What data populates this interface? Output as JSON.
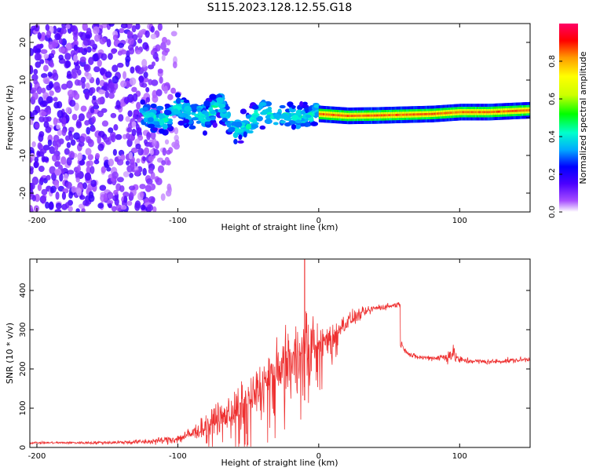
{
  "figure_title": "S115.2023.128.12.55.G18",
  "chart_data": [
    {
      "type": "heatmap",
      "title": "",
      "xlabel": "Height of straight line (km)",
      "ylabel": "Frequency (Hz)",
      "xlim": [
        -205,
        150
      ],
      "ylim": [
        -25,
        25
      ],
      "xticks": [
        -200,
        -100,
        0,
        100
      ],
      "yticks": [
        -20,
        -10,
        0,
        10,
        20
      ],
      "grid": false,
      "description_of_values": "normalized spectral amplitude vs height and frequency",
      "features": [
        {
          "name": "scattered noise",
          "x_range": [
            -205,
            -110
          ],
          "freq_range": [
            -25,
            25
          ],
          "typical_amplitude": 0.1
        },
        {
          "name": "wandering signal",
          "x_range": [
            -125,
            0
          ],
          "center_freq_points": [
            [
              -125,
              1
            ],
            [
              -110,
              -1
            ],
            [
              -100,
              3
            ],
            [
              -90,
              1
            ],
            [
              -80,
              0
            ],
            [
              -70,
              4
            ],
            [
              -60,
              -3
            ],
            [
              -50,
              -2
            ],
            [
              -40,
              2
            ],
            [
              -30,
              0
            ],
            [
              -20,
              1
            ],
            [
              -10,
              0
            ],
            [
              0,
              2
            ]
          ],
          "typical_amplitude": 0.4
        },
        {
          "name": "stable line",
          "x_range": [
            0,
            150
          ],
          "center_freq_points": [
            [
              0,
              1
            ],
            [
              20,
              0.5
            ],
            [
              40,
              0.6
            ],
            [
              60,
              0.8
            ],
            [
              80,
              1
            ],
            [
              100,
              1.5
            ],
            [
              120,
              1.5
            ],
            [
              150,
              2
            ]
          ],
          "typical_amplitude": 0.85
        }
      ],
      "colorbar": {
        "label": "Normalized spectral amplitude",
        "range": [
          0.0,
          1.0
        ],
        "ticks": [
          "0.0",
          "0.2",
          "0.4",
          "0.6",
          "0.8"
        ],
        "tick_values": [
          0.0,
          0.2,
          0.4,
          0.6,
          0.8
        ],
        "colors": [
          "#ffffff",
          "#a64dff",
          "#4b00ff",
          "#0000ff",
          "#00aaff",
          "#00ffcc",
          "#00ff00",
          "#ccff00",
          "#ffff00",
          "#ff9900",
          "#ff0000",
          "#ff0066"
        ]
      }
    },
    {
      "type": "line",
      "title": "",
      "xlabel": "Height of straight line (km)",
      "ylabel": "SNR (10 * v/v)",
      "xlim": [
        -205,
        150
      ],
      "ylim": [
        0,
        480
      ],
      "xticks": [
        -200,
        -100,
        0,
        100
      ],
      "yticks": [
        0,
        100,
        200,
        300,
        400
      ],
      "grid": false,
      "series": [
        {
          "color": "#ee3030",
          "x": [
            -205,
            -180,
            -160,
            -140,
            -120,
            -110,
            -100,
            -90,
            -80,
            -70,
            -60,
            -50,
            -40,
            -30,
            -20,
            -10,
            -5,
            0,
            10,
            20,
            30,
            40,
            50,
            57,
            58,
            60,
            65,
            70,
            80,
            90,
            95,
            100,
            110,
            120,
            130,
            140,
            150
          ],
          "y": [
            12,
            12,
            12,
            13,
            15,
            18,
            22,
            35,
            55,
            80,
            100,
            120,
            160,
            190,
            230,
            260,
            280,
            260,
            290,
            320,
            340,
            355,
            360,
            365,
            265,
            255,
            235,
            230,
            228,
            230,
            240,
            222,
            220,
            218,
            220,
            222,
            225
          ],
          "noise": [
            3,
            3,
            4,
            5,
            8,
            10,
            14,
            20,
            30,
            40,
            50,
            60,
            70,
            80,
            85,
            90,
            85,
            60,
            35,
            25,
            15,
            10,
            8,
            8,
            10,
            8,
            8,
            7,
            7,
            15,
            25,
            12,
            7,
            7,
            7,
            7,
            7
          ]
        }
      ],
      "spike": {
        "x": -10,
        "y": 480
      }
    }
  ]
}
